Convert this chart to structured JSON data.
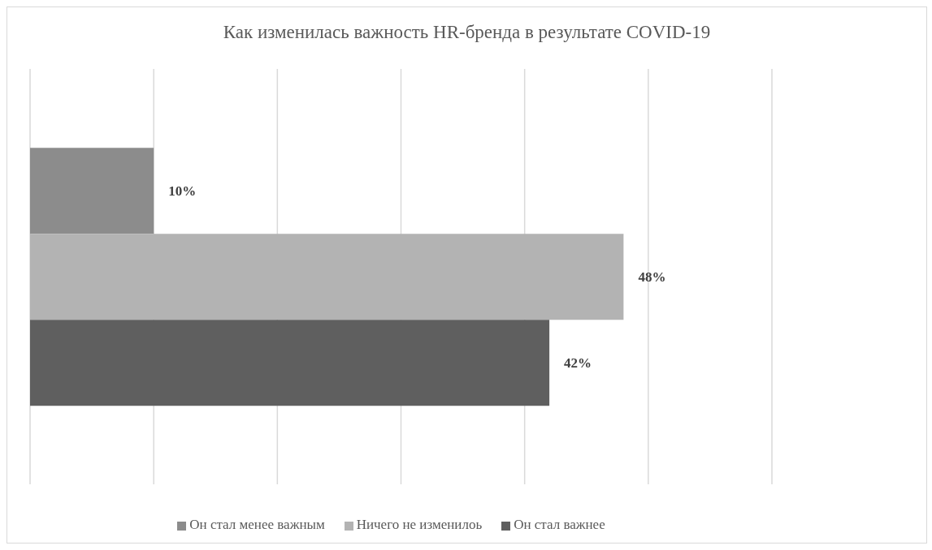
{
  "chart_data": {
    "type": "bar",
    "orientation": "horizontal",
    "title": "Как изменилась важность HR-бренда в результате COVID-19",
    "categories": [
      null
    ],
    "series": [
      {
        "name": "Он стал менее важным",
        "color": "#8c8c8c",
        "values": [
          10
        ],
        "value_labels": [
          "10%"
        ]
      },
      {
        "name": "Ничего не изменилоь",
        "color": "#b3b3b3",
        "values": [
          48
        ],
        "value_labels": [
          "48%"
        ]
      },
      {
        "name": "Он стал важнее",
        "color": "#5f5f5f",
        "values": [
          42
        ],
        "value_labels": [
          "42%"
        ]
      }
    ],
    "xticks": [
      {
        "value": 0,
        "label": null
      },
      {
        "value": 10,
        "label": null
      },
      {
        "value": 20,
        "label": null
      },
      {
        "value": 30,
        "label": null
      },
      {
        "value": 40,
        "label": null
      },
      {
        "value": 50,
        "label": null
      }
    ],
    "grid": "x",
    "legend": "bottom"
  }
}
